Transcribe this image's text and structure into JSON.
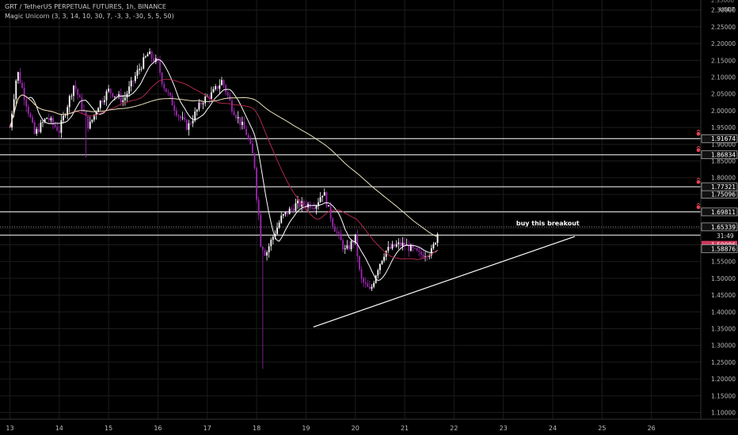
{
  "header": {
    "symbol_title": "GRT / TetherUS PERPETUAL FUTURES, 1h, BINANCE",
    "indicator_title": "Magic Unicorn (3, 3, 14, 10, 30, 7, -3, 3, -30, 5, 5, 50)",
    "currency_unit": "USDT"
  },
  "colors": {
    "background": "#000000",
    "bull_candle": "#ffffff",
    "bear_candle": "#9c27b0",
    "ma_fast": "#ffffff",
    "ma_mid": "#b0284e",
    "ma_slow": "#e8e1b8",
    "level_line": "#ffffff",
    "grid": "#1c1c1c",
    "badge_red": "#d03a5c"
  },
  "chart_data": {
    "type": "candlestick",
    "timeframe": "1h",
    "x_axis": {
      "ticks": [
        "13",
        "14",
        "15",
        "16",
        "17",
        "18",
        "19",
        "20",
        "21",
        "22",
        "23",
        "24",
        "25",
        "26"
      ],
      "range_days": [
        12.8,
        27.0
      ]
    },
    "y_axis": {
      "ticks": [
        "1.10000",
        "1.15000",
        "1.20000",
        "1.25000",
        "1.30000",
        "1.35000",
        "1.40000",
        "1.45000",
        "1.50000",
        "1.55000",
        "1.60000",
        "1.65000",
        "1.70000",
        "1.75000",
        "1.80000",
        "1.85000",
        "1.90000",
        "1.95000",
        "2.00000",
        "2.05000",
        "2.10000",
        "2.15000",
        "2.20000",
        "2.25000",
        "2.30000"
      ],
      "range": [
        1.08,
        2.33
      ],
      "top_partial_tick": "2.35000"
    },
    "horizontal_levels": [
      {
        "price": 1.91674,
        "label": "1.91674",
        "alert": true
      },
      {
        "price": 1.86834,
        "label": "1.86834",
        "alert": true
      },
      {
        "price": 1.77321,
        "label": "1.77321",
        "alert": true
      },
      {
        "price": 1.69811,
        "label": "1.69811",
        "alert": true
      },
      {
        "price": 1.6288,
        "label": "",
        "alert": false
      }
    ],
    "price_badges": [
      {
        "price": 1.75096,
        "label": "1.75096",
        "style": "dark"
      },
      {
        "price": 1.65339,
        "label": "1.65339",
        "style": "dark"
      },
      {
        "price": 1.59986,
        "label": "1.59986",
        "style": "red"
      },
      {
        "price": 1.58876,
        "label": "1.58876",
        "style": "dark"
      }
    ],
    "current_price": 1.65339,
    "bar_countdown": "31:49",
    "trendline": {
      "from": {
        "day": 19.15,
        "price": 1.355
      },
      "to": {
        "day": 24.45,
        "price": 1.625
      }
    },
    "annotation": {
      "text": "buy this breakout",
      "day": 23.9,
      "price": 1.658
    },
    "ohlc_anchors": [
      {
        "day": 13.0,
        "price": 1.95
      },
      {
        "day": 13.15,
        "price": 2.12
      },
      {
        "day": 13.3,
        "price": 2.04
      },
      {
        "day": 13.5,
        "price": 1.93
      },
      {
        "day": 13.75,
        "price": 1.98
      },
      {
        "day": 14.0,
        "price": 1.94
      },
      {
        "day": 14.3,
        "price": 2.08
      },
      {
        "day": 14.6,
        "price": 1.95
      },
      {
        "day": 14.8,
        "price": 2.02
      },
      {
        "day": 15.0,
        "price": 2.06
      },
      {
        "day": 15.3,
        "price": 2.03
      },
      {
        "day": 15.6,
        "price": 2.12
      },
      {
        "day": 15.8,
        "price": 2.17
      },
      {
        "day": 16.0,
        "price": 2.14
      },
      {
        "day": 16.1,
        "price": 2.08
      },
      {
        "day": 16.4,
        "price": 1.99
      },
      {
        "day": 16.6,
        "price": 1.95
      },
      {
        "day": 16.9,
        "price": 2.03
      },
      {
        "day": 17.1,
        "price": 2.05
      },
      {
        "day": 17.3,
        "price": 2.09
      },
      {
        "day": 17.5,
        "price": 2.01
      },
      {
        "day": 17.8,
        "price": 1.93
      },
      {
        "day": 17.95,
        "price": 1.85
      },
      {
        "day": 18.08,
        "price": 1.62
      },
      {
        "day": 18.2,
        "price": 1.58
      },
      {
        "day": 18.5,
        "price": 1.68
      },
      {
        "day": 18.8,
        "price": 1.72
      },
      {
        "day": 19.2,
        "price": 1.72
      },
      {
        "day": 19.35,
        "price": 1.76
      },
      {
        "day": 19.55,
        "price": 1.66
      },
      {
        "day": 19.8,
        "price": 1.58
      },
      {
        "day": 20.0,
        "price": 1.62
      },
      {
        "day": 20.1,
        "price": 1.5
      },
      {
        "day": 20.3,
        "price": 1.46
      },
      {
        "day": 20.45,
        "price": 1.53
      },
      {
        "day": 20.6,
        "price": 1.58
      },
      {
        "day": 20.85,
        "price": 1.6
      },
      {
        "day": 21.0,
        "price": 1.6
      },
      {
        "day": 21.3,
        "price": 1.57
      },
      {
        "day": 21.55,
        "price": 1.58
      },
      {
        "day": 21.7,
        "price": 1.65
      }
    ]
  }
}
